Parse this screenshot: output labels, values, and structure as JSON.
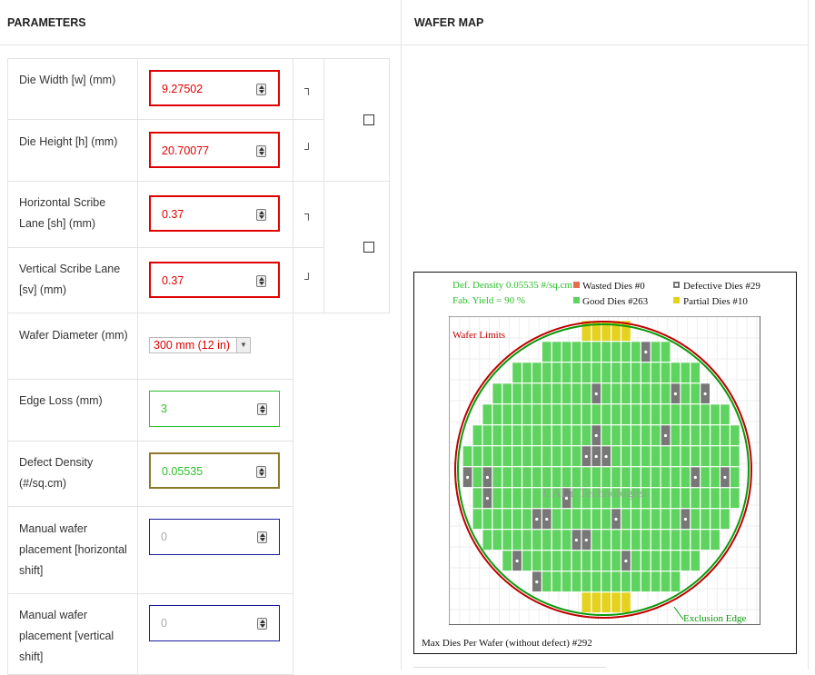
{
  "headers": {
    "parameters": "PARAMETERS",
    "wafer_map": "WAFER MAP"
  },
  "params": {
    "die_width": {
      "label": "Die Width [w] (mm)",
      "value": "9.27502"
    },
    "die_height": {
      "label": "Die Height [h] (mm)",
      "value": "20.70077"
    },
    "h_scribe": {
      "label": "Horizontal Scribe Lane [sh] (mm)",
      "value": "0.37"
    },
    "v_scribe": {
      "label": "Vertical Scribe Lane [sv] (mm)",
      "value": "0.37"
    },
    "wafer_diameter": {
      "label": "Wafer Diameter (mm)",
      "value": "300 mm (12 in)"
    },
    "edge_loss": {
      "label": "Edge Loss (mm)",
      "value": "3"
    },
    "defect_density": {
      "label": "Defect Density (#/sq.cm)",
      "value": "0.05535"
    },
    "manual_h": {
      "label": "Manual wafer placement [horizontal shift]",
      "placeholder": "0"
    },
    "manual_v": {
      "label": "Manual wafer placement [vertical shift]",
      "placeholder": "0"
    }
  },
  "map": {
    "def_density": "Def. Density 0.05535 #/sq.cm",
    "fab_yield": "Fab. Yield = 90 %",
    "legend": {
      "wasted": "Wasted Dies  #0",
      "good": "Good Dies #263",
      "defective": "Defective Dies  #29",
      "partial": "Partial Dies #10"
    },
    "wafer_limits": "Wafer Limits",
    "exclusion_edge": "Exclusion Edge",
    "watermark": "CALY Technologies",
    "max_dies": "Max Dies Per Wafer (without defect) #292",
    "colors": {
      "good": "#5fd35f",
      "defective": "#777777",
      "partial": "#e5d21f",
      "wasted": "#e07050",
      "wafer_limit": "#c00000",
      "exclusion": "#0a9a0a"
    }
  }
}
